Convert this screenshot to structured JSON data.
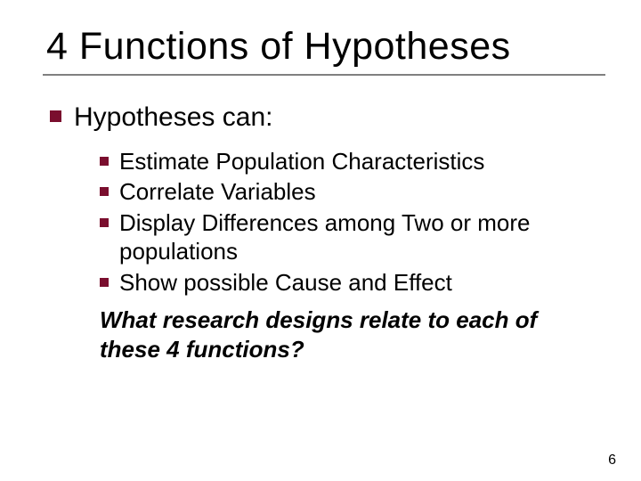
{
  "colors": {
    "background": "#ffffff",
    "text": "#000000",
    "bullet": "#7a0e2e",
    "rule": "#808080"
  },
  "typography": {
    "title_fontsize": 43,
    "lvl1_fontsize": 30,
    "lvl2_fontsize": 26,
    "question_fontsize": 26,
    "pagenum_fontsize": 16,
    "font_family": "Verdana"
  },
  "title": "4 Functions of Hypotheses",
  "lvl1_text": "Hypotheses can:",
  "lvl2_items": [
    "Estimate Population Characteristics",
    "Correlate Variables",
    "Display Differences among Two or more populations",
    "Show possible Cause and Effect"
  ],
  "question": "What research designs relate to each of these 4 functions?",
  "page_number": "6"
}
